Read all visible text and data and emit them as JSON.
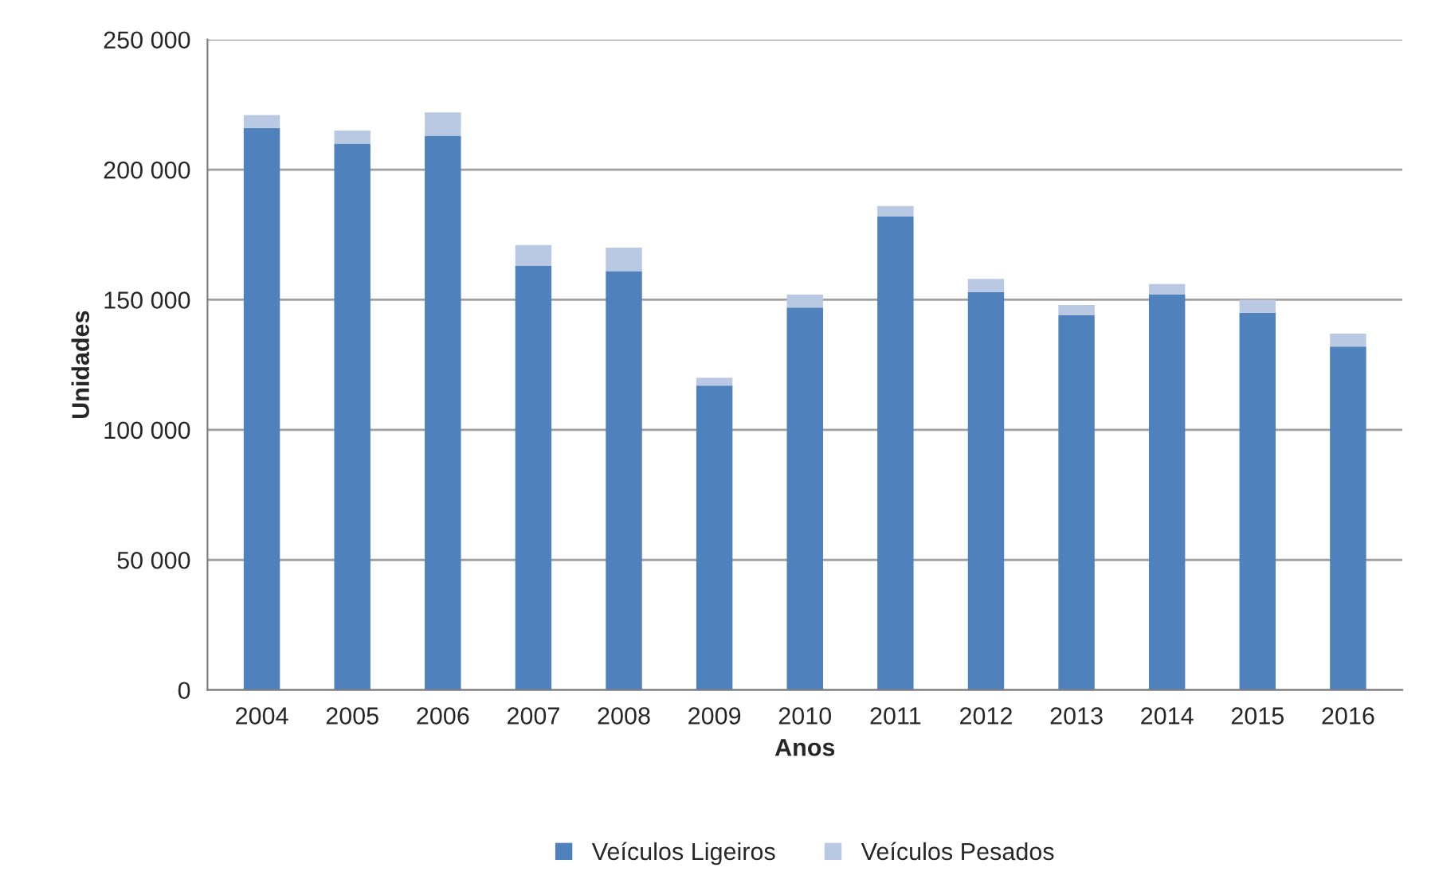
{
  "chart_data": {
    "type": "bar",
    "stacked": true,
    "xlabel": "Anos",
    "ylabel": "Unidades",
    "categories": [
      "2004",
      "2005",
      "2006",
      "2007",
      "2008",
      "2009",
      "2010",
      "2011",
      "2012",
      "2013",
      "2014",
      "2015",
      "2016"
    ],
    "series": [
      {
        "name": "Veículos Ligeiros",
        "color": "#4f81bd",
        "values": [
          216000,
          210000,
          213000,
          163000,
          161000,
          117000,
          147000,
          182000,
          153000,
          144000,
          152000,
          145000,
          132000
        ]
      },
      {
        "name": "Veículos Pesados",
        "color": "#b9c9e4",
        "values": [
          5000,
          5000,
          9000,
          8000,
          9000,
          3000,
          5000,
          4000,
          5000,
          4000,
          4000,
          5000,
          5000
        ]
      }
    ],
    "ylim": [
      0,
      250000
    ],
    "yticks": [
      0,
      {
        "value": 50000,
        "label": "50 000"
      },
      {
        "value": 100000,
        "label": "100 000"
      },
      {
        "value": 150000,
        "label": "150 000"
      },
      {
        "value": 200000,
        "label": "200 000"
      },
      {
        "value": 250000,
        "label": "250 000"
      }
    ],
    "grid": "y",
    "legend": "bottom"
  }
}
